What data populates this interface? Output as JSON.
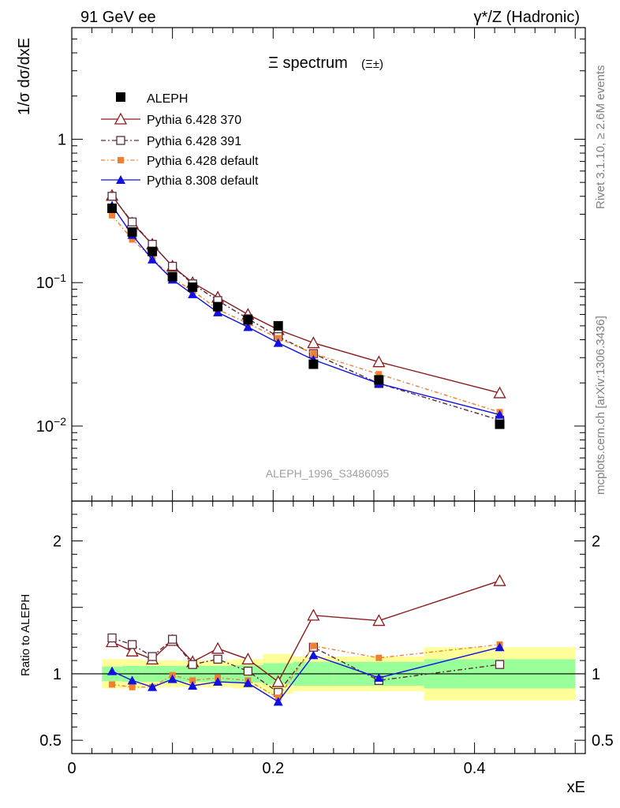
{
  "header": {
    "left": "91 GeV ee",
    "right": "γ*/Z (Hadronic)"
  },
  "side_labels": {
    "rivet": "Rivet 3.1.10, ≥ 2.6M events",
    "mcplots": "mcplots.cern.ch [arXiv:1306.3436]"
  },
  "title": "Ξ spectrum",
  "title_sub": "(Ξ±)",
  "analysis_label": "ALEPH_1996_S3486095",
  "colors": {
    "aleph": "#000000",
    "py370": "#8b1a1a",
    "py391": "#5b2a3a",
    "py_default": "#f08030",
    "py8": "#1010e0",
    "band_inner": "#99ff99",
    "band_outer": "#ffff99"
  },
  "chart_data": {
    "type": "scatter",
    "main": {
      "ylabel": "1/σ dσ/dxE",
      "yscale": "log",
      "ylim": [
        0.003,
        6
      ],
      "yticks": [
        {
          "v": 1,
          "label": "1"
        },
        {
          "v": 0.1,
          "label": "10−1"
        },
        {
          "v": 0.01,
          "label": "10−2"
        }
      ]
    },
    "ratio": {
      "ylabel": "Ratio to ALEPH",
      "ylim": [
        0.4,
        2.3
      ],
      "yticks": [
        {
          "v": 0.5,
          "label": "0.5"
        },
        {
          "v": 1,
          "label": "1"
        },
        {
          "v": 2,
          "label": "2"
        }
      ]
    },
    "xlabel": "xE",
    "xlim": [
      0,
      0.51
    ],
    "xticks": [
      {
        "v": 0,
        "label": "0"
      },
      {
        "v": 0.2,
        "label": "0.2"
      },
      {
        "v": 0.4,
        "label": "0.4"
      }
    ],
    "data": {
      "name": "ALEPH",
      "x": [
        0.04,
        0.06,
        0.08,
        0.1,
        0.12,
        0.145,
        0.175,
        0.205,
        0.24,
        0.305,
        0.425
      ],
      "y": [
        0.33,
        0.225,
        0.165,
        0.11,
        0.093,
        0.068,
        0.055,
        0.05,
        0.027,
        0.021,
        0.0103
      ],
      "band_edges": [
        0.03,
        0.05,
        0.07,
        0.09,
        0.11,
        0.13,
        0.16,
        0.19,
        0.22,
        0.26,
        0.35,
        0.5
      ],
      "band_inner": [
        0.055,
        0.06,
        0.06,
        0.06,
        0.06,
        0.06,
        0.065,
        0.08,
        0.09,
        0.09,
        0.11
      ],
      "band_outer": [
        0.11,
        0.11,
        0.1,
        0.1,
        0.1,
        0.1,
        0.11,
        0.15,
        0.13,
        0.13,
        0.2
      ]
    },
    "series": [
      {
        "name": "Pythia 6.428 370",
        "key": "py370",
        "marker": "triangle-open",
        "dash": "",
        "y": [
          0.405,
          0.26,
          0.185,
          0.13,
          0.1,
          0.079,
          0.06,
          0.047,
          0.038,
          0.028,
          0.017
        ],
        "ratio": [
          1.24,
          1.17,
          1.11,
          1.25,
          1.09,
          1.19,
          1.11,
          0.94,
          1.44,
          1.4,
          1.7
        ]
      },
      {
        "name": "Pythia 6.428 391",
        "key": "py391",
        "marker": "square-open",
        "dash": "6,3,2,3",
        "y": [
          0.4,
          0.265,
          0.185,
          0.13,
          0.098,
          0.075,
          0.056,
          0.042,
          0.032,
          0.0198,
          0.011
        ],
        "ratio": [
          1.27,
          1.22,
          1.13,
          1.26,
          1.07,
          1.11,
          1.02,
          0.86,
          1.2,
          0.95,
          1.07
        ]
      },
      {
        "name": "Pythia 6.428 default",
        "key": "py_default",
        "marker": "square-filled",
        "dash": "5,3,1.5,3",
        "y": [
          0.295,
          0.2,
          0.148,
          0.107,
          0.088,
          0.065,
          0.052,
          0.041,
          0.032,
          0.023,
          0.0125
        ],
        "ratio": [
          0.92,
          0.9,
          0.9,
          0.99,
          0.95,
          0.97,
          0.95,
          0.82,
          1.21,
          1.12,
          1.22
        ]
      },
      {
        "name": "Pythia 8.308 default",
        "key": "py8",
        "marker": "triangle-filled",
        "dash": "",
        "y": [
          0.345,
          0.215,
          0.145,
          0.105,
          0.083,
          0.062,
          0.049,
          0.038,
          0.029,
          0.0198,
          0.012
        ],
        "ratio": [
          1.02,
          0.95,
          0.9,
          0.96,
          0.91,
          0.94,
          0.93,
          0.79,
          1.14,
          0.97,
          1.2
        ]
      }
    ]
  }
}
